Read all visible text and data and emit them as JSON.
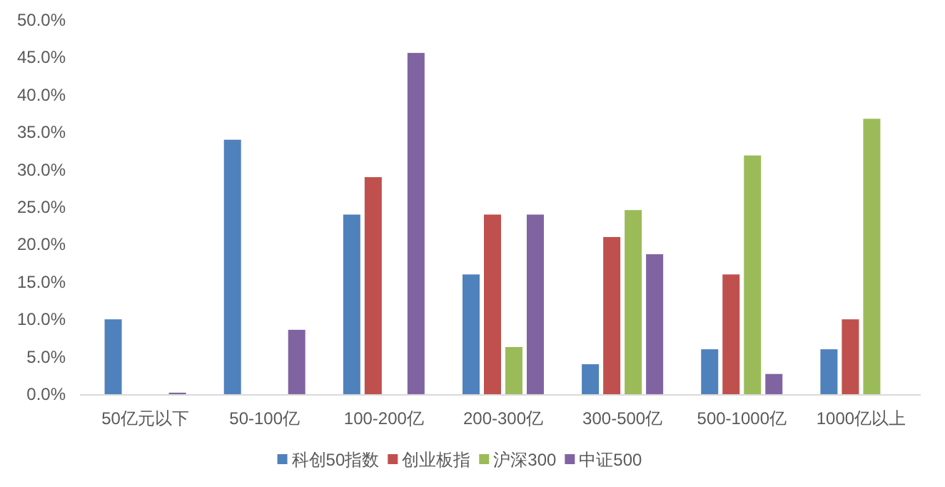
{
  "chart_data": {
    "type": "bar",
    "categories": [
      "50亿元以下",
      "50-100亿",
      "100-200亿",
      "200-300亿",
      "300-500亿",
      "500-1000亿",
      "1000亿以上"
    ],
    "series": [
      {
        "name": "科创50指数",
        "color": "#4f81bd",
        "values": [
          10,
          34,
          24,
          16,
          4,
          6,
          6
        ]
      },
      {
        "name": "创业板指",
        "color": "#c0504d",
        "values": [
          0,
          0,
          29,
          24,
          21,
          16,
          10
        ]
      },
      {
        "name": "沪深300",
        "color": "#9bbb59",
        "values": [
          0,
          0,
          0,
          6.3,
          24.6,
          31.9,
          36.8
        ]
      },
      {
        "name": "中证500",
        "color": "#8064a2",
        "values": [
          0.2,
          8.6,
          45.6,
          24,
          18.7,
          2.7,
          0
        ]
      }
    ],
    "ylim": [
      0,
      50
    ],
    "yticks": [
      {
        "value": 0,
        "label": "0.0%"
      },
      {
        "value": 5,
        "label": "5.0%"
      },
      {
        "value": 10,
        "label": "10.0%"
      },
      {
        "value": 15,
        "label": "15.0%"
      },
      {
        "value": 20,
        "label": "20.0%"
      },
      {
        "value": 25,
        "label": "25.0%"
      },
      {
        "value": 30,
        "label": "30.0%"
      },
      {
        "value": 35,
        "label": "35.0%"
      },
      {
        "value": 40,
        "label": "40.0%"
      },
      {
        "value": 45,
        "label": "45.0%"
      },
      {
        "value": 50,
        "label": "50.0%"
      }
    ],
    "grid": false,
    "legend": "bottom"
  }
}
